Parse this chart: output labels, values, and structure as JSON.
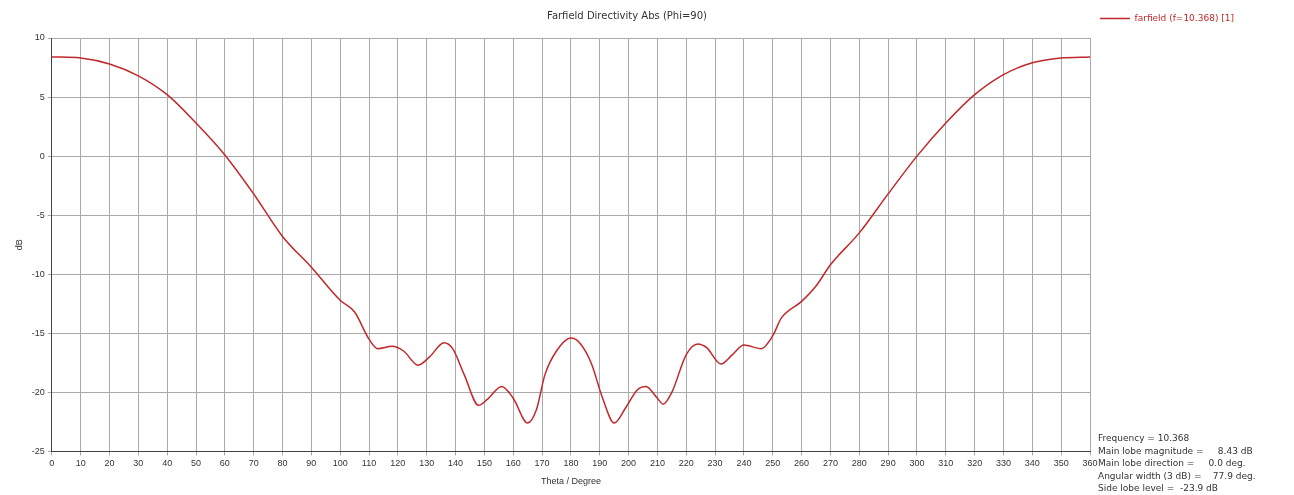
{
  "chart_data": {
    "type": "line",
    "title": "Farfield Directivity Abs (Phi=90)",
    "xlabel": "Theta / Degree",
    "ylabel": "dB",
    "x": [
      0,
      10,
      20,
      30,
      40,
      50,
      60,
      70,
      80,
      90,
      100,
      105,
      110,
      113,
      118,
      122,
      127,
      131,
      136,
      139,
      143,
      148,
      151,
      156,
      160,
      165,
      168,
      171,
      175,
      180,
      183,
      187,
      191,
      195,
      199,
      203,
      206,
      210,
      212,
      215,
      220,
      224,
      227,
      232,
      236,
      240,
      246,
      250,
      253,
      260,
      265,
      270,
      280,
      290,
      300,
      310,
      320,
      330,
      340,
      350,
      360
    ],
    "series": [
      {
        "name": "farfield (f=10.368) [1]",
        "color": "#c0282a",
        "values": [
          8.4,
          8.3,
          7.8,
          6.8,
          5.2,
          2.8,
          0.1,
          -3.2,
          -6.8,
          -9.4,
          -12.2,
          -13.2,
          -15.5,
          -16.3,
          -16.1,
          -16.5,
          -17.7,
          -17.0,
          -15.8,
          -16.3,
          -18.5,
          -21.1,
          -20.6,
          -19.5,
          -20.5,
          -22.6,
          -21.5,
          -18.5,
          -16.5,
          -15.4,
          -15.8,
          -17.5,
          -20.5,
          -22.6,
          -21.3,
          -19.8,
          -19.5,
          -20.5,
          -21.0,
          -20.0,
          -16.8,
          -15.9,
          -16.2,
          -17.6,
          -16.8,
          -16.0,
          -16.3,
          -15.2,
          -13.7,
          -12.3,
          -11.0,
          -9.2,
          -6.5,
          -3.2,
          0.0,
          2.8,
          5.2,
          6.9,
          7.9,
          8.3,
          8.4
        ]
      }
    ],
    "xlim": [
      0,
      360
    ],
    "xticks": [
      0,
      10,
      20,
      30,
      40,
      50,
      60,
      70,
      80,
      90,
      100,
      110,
      120,
      130,
      140,
      150,
      160,
      170,
      180,
      190,
      200,
      210,
      220,
      230,
      240,
      250,
      260,
      270,
      280,
      290,
      300,
      310,
      320,
      330,
      340,
      350,
      360
    ],
    "ylim": [
      -25,
      10
    ],
    "yticks": [
      -25,
      -20,
      -15,
      -10,
      -5,
      0,
      5,
      10
    ],
    "grid": true,
    "legend": "top right",
    "marker": "none",
    "line_style": "solid",
    "annotations": [
      "Frequency = 10.368",
      "Main lobe magnitude =     8.43 dB",
      "Main lobe direction =     0.0 deg.",
      "Angular width (3 dB) =    77.9 deg.",
      "Side lobe level =  -23.9 dB"
    ]
  }
}
